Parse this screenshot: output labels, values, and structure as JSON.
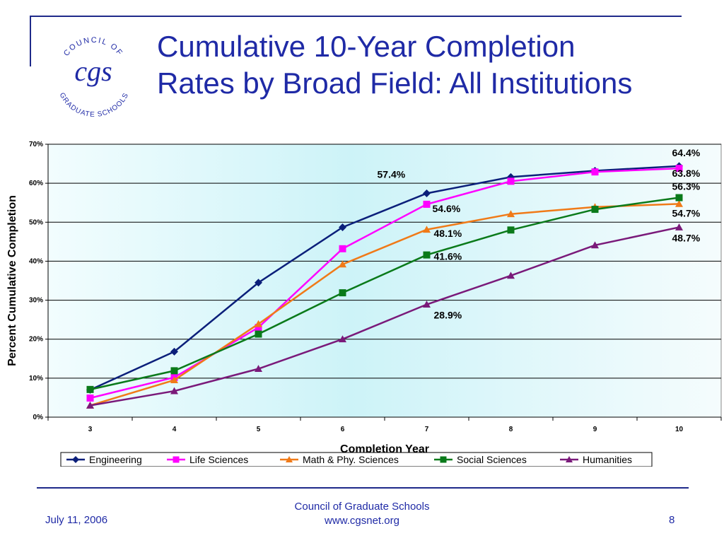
{
  "title": {
    "line1": "Cumulative 10-Year Completion",
    "line2": "Rates by Broad Field: All Institutions"
  },
  "logo": {
    "top_text": "COUNCIL OF",
    "monogram": "cgs",
    "bottom_text": "GRADUATE SCHOOLS"
  },
  "footer": {
    "date": "July 11, 2006",
    "org": "Council of Graduate Schools",
    "url": "www.cgsnet.org",
    "page": "8"
  },
  "colors": {
    "accent": "#1f2aa6",
    "plot_bg": "#dff8fb"
  },
  "chart_data": {
    "type": "line",
    "x": [
      3,
      4,
      5,
      6,
      7,
      8,
      9,
      10
    ],
    "xlabel": "Completion Year",
    "ylabel": "Percent Cumulative Completion",
    "ylim": [
      0,
      70
    ],
    "yticks": [
      "0%",
      "10%",
      "20%",
      "30%",
      "40%",
      "50%",
      "60%",
      "70%"
    ],
    "grid": true,
    "legend": "bottom",
    "series": [
      {
        "name": "Engineering",
        "color": "#0b1f7a",
        "marker": "diamond",
        "values": [
          7.0,
          16.8,
          34.5,
          48.7,
          57.4,
          61.6,
          63.2,
          64.4
        ]
      },
      {
        "name": "Life Sciences",
        "color": "#ff00ff",
        "marker": "square",
        "values": [
          4.9,
          10.2,
          23.0,
          43.2,
          54.6,
          60.5,
          62.9,
          63.8
        ]
      },
      {
        "name": "Math & Phy. Sciences",
        "color": "#f07a18",
        "marker": "triangle",
        "values": [
          3.0,
          9.5,
          23.9,
          39.2,
          48.1,
          52.1,
          53.9,
          54.7
        ]
      },
      {
        "name": "Social Sciences",
        "color": "#0a7a1a",
        "marker": "square",
        "values": [
          7.1,
          11.9,
          21.3,
          31.9,
          41.6,
          48.0,
          53.3,
          56.3
        ]
      },
      {
        "name": "Humanities",
        "color": "#7a1a7a",
        "marker": "triangle",
        "values": [
          3.0,
          6.7,
          12.4,
          20.0,
          28.9,
          36.3,
          44.1,
          48.7
        ]
      }
    ],
    "annotations": [
      {
        "text": "57.4%",
        "x": 7,
        "y": 57.4
      },
      {
        "text": "54.6%",
        "x": 7,
        "y": 54.6
      },
      {
        "text": "48.1%",
        "x": 7,
        "y": 48.1
      },
      {
        "text": "41.6%",
        "x": 7,
        "y": 41.6
      },
      {
        "text": "28.9%",
        "x": 7,
        "y": 28.9
      },
      {
        "text": "64.4%",
        "x": 10,
        "y": 64.4
      },
      {
        "text": "63.8%",
        "x": 10,
        "y": 63.8
      },
      {
        "text": "56.3%",
        "x": 10,
        "y": 56.3
      },
      {
        "text": "54.7%",
        "x": 10,
        "y": 54.7
      },
      {
        "text": "48.7%",
        "x": 10,
        "y": 48.7
      }
    ]
  }
}
